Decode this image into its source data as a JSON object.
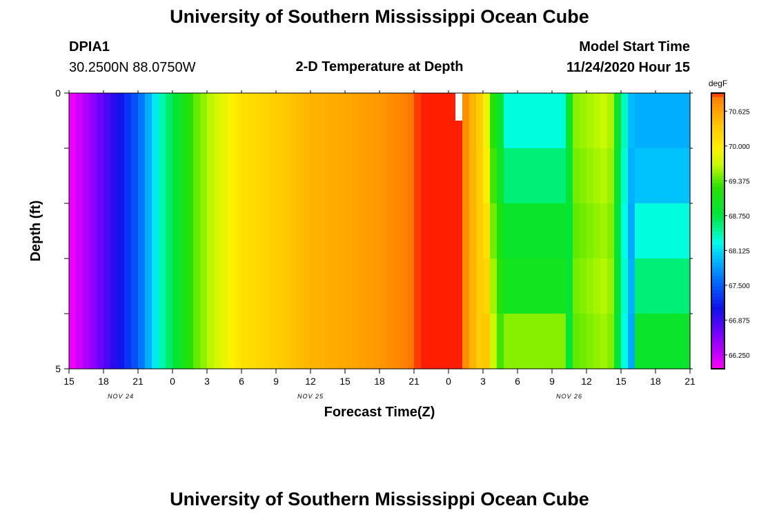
{
  "header": {
    "title": "University of Southern Mississippi Ocean Cube",
    "station_id": "DPIA1",
    "station_coords": "30.2500N 88.0750W",
    "plot_title": "2-D Temperature at Depth",
    "model_start_label": "Model Start Time",
    "model_start_value": "11/24/2020 Hour 15"
  },
  "footer": {
    "title": "University of Southern Mississippi Ocean Cube"
  },
  "chart_data": {
    "type": "heatmap",
    "title": "2-D Temperature at Depth",
    "xlabel": "Forecast Time(Z)",
    "ylabel": "Depth (ft)",
    "x_ticks": [
      "15",
      "18",
      "21",
      "0",
      "3",
      "6",
      "9",
      "12",
      "15",
      "18",
      "21",
      "0",
      "3",
      "6",
      "9",
      "12",
      "15",
      "18",
      "21"
    ],
    "x_range_hours": [
      0,
      54
    ],
    "y_ticks": [
      "0",
      "5"
    ],
    "ylim": [
      0,
      5
    ],
    "date_labels": [
      {
        "text": "NOV 24",
        "hour": 4.5
      },
      {
        "text": "NOV 25",
        "hour": 21
      },
      {
        "text": "NOV 26",
        "hour": 43.5
      }
    ],
    "colorbar": {
      "unit": "degF",
      "min": 66.0,
      "max": 70.95,
      "ticks": [
        "70.625",
        "70.000",
        "69.375",
        "68.750",
        "68.125",
        "67.500",
        "66.875",
        "66.250"
      ],
      "tick_values": [
        70.625,
        70.0,
        69.375,
        68.75,
        68.125,
        67.5,
        66.875,
        66.25
      ]
    },
    "depth_levels_ft": [
      0,
      1,
      2,
      3,
      4,
      5
    ],
    "surface_temperature_profile": [
      {
        "hour": 0,
        "value": 66.0
      },
      {
        "hour": 6,
        "value": 67.5
      },
      {
        "hour": 8,
        "value": 68.4
      },
      {
        "hour": 11,
        "value": 69.4
      },
      {
        "hour": 15,
        "value": 70.1
      },
      {
        "hour": 21,
        "value": 70.5
      },
      {
        "hour": 27,
        "value": 70.7
      },
      {
        "hour": 30,
        "value": 70.9
      },
      {
        "hour": 33.6,
        "value": 71.2
      },
      {
        "hour": 34.6,
        "value": 70.7
      },
      {
        "hour": 36,
        "value": 70.2
      },
      {
        "hour": 37,
        "value": 69.1
      },
      {
        "hour": 38,
        "value": 68.6
      },
      {
        "hour": 40,
        "value": 68.3
      },
      {
        "hour": 43,
        "value": 68.3
      },
      {
        "hour": 44,
        "value": 69.5
      },
      {
        "hour": 47,
        "value": 69.7
      },
      {
        "hour": 48,
        "value": 68.6
      },
      {
        "hour": 49,
        "value": 67.9
      },
      {
        "hour": 54,
        "value": 67.9
      }
    ],
    "late_period_depth_values": {
      "note": "approx degF per depth layer (0-1,1-2,2-3,3-4,4-5 ft)",
      "hour_38_to_43": [
        68.3,
        68.6,
        68.9,
        69.0,
        69.5
      ],
      "hour_49_to_54": [
        67.9,
        68.0,
        68.3,
        68.6,
        68.9
      ]
    },
    "missing_data": {
      "hour_start": 33.6,
      "hour_end": 34.2,
      "depth_start": 0,
      "depth_end": 0.5
    }
  }
}
